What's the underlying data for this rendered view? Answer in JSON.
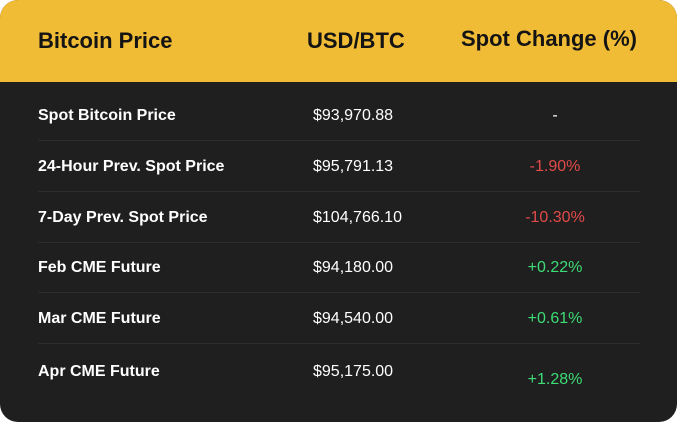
{
  "header": {
    "col_name": "Bitcoin Price",
    "col_usd": "USD/BTC",
    "col_change": "Spot Change (%)"
  },
  "colors": {
    "header_bg": "#f1bc35",
    "body_bg": "#1f1f1f",
    "negative": "#e24a4a",
    "positive": "#3ddc76"
  },
  "rows": [
    {
      "name": "Spot Bitcoin Price",
      "price": "$93,970.88",
      "change": "-",
      "trend": "neutral"
    },
    {
      "name": "24-Hour Prev. Spot Price",
      "price": "$95,791.13",
      "change": "-1.90%",
      "trend": "negative"
    },
    {
      "name": "7-Day Prev. Spot Price",
      "price": "$104,766.10",
      "change": "-10.30%",
      "trend": "negative"
    },
    {
      "name": "Feb CME Future",
      "price": "$94,180.00",
      "change": "+0.22%",
      "trend": "positive"
    },
    {
      "name": "Mar CME Future",
      "price": "$94,540.00",
      "change": "+0.61%",
      "trend": "positive"
    },
    {
      "name": "Apr CME Future",
      "price": "$95,175.00",
      "change": "+1.28%",
      "trend": "positive"
    }
  ]
}
